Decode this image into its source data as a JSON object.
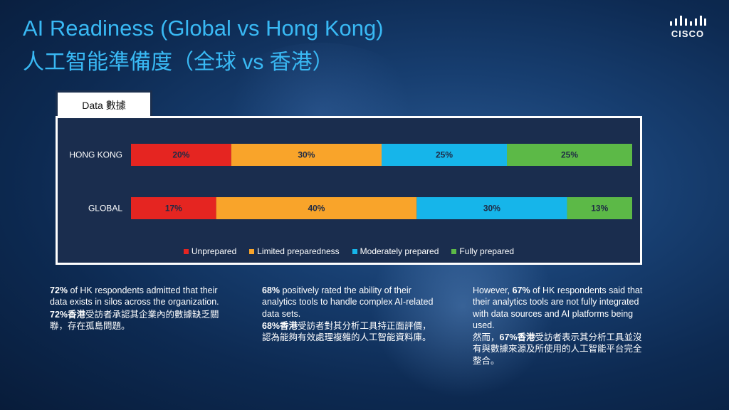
{
  "title_en": "AI Readiness (Global vs Hong Kong)",
  "title_zh": "人工智能準備度（全球 vs 香港）",
  "logo_text": "CISCO",
  "tab_label": "Data 數據",
  "colors": {
    "unprepared": "#e52521",
    "limited": "#f9a42a",
    "moderate": "#16b5ea",
    "fully": "#5cb947",
    "title": "#39b9f4"
  },
  "chart_data": {
    "type": "bar",
    "orientation": "horizontal",
    "stacked": "percent",
    "categories": [
      "HONG KONG",
      "GLOBAL"
    ],
    "series": [
      {
        "name": "Unprepared",
        "values": [
          20,
          17
        ],
        "color": "#e52521"
      },
      {
        "name": "Limited preparedness",
        "values": [
          30,
          40
        ],
        "color": "#f9a42a"
      },
      {
        "name": "Moderately prepared",
        "values": [
          25,
          30
        ],
        "color": "#16b5ea"
      },
      {
        "name": "Fully prepared",
        "values": [
          25,
          13
        ],
        "color": "#5cb947"
      }
    ],
    "xlim": [
      0,
      100
    ],
    "legend": "bottom",
    "grid": false
  },
  "notes": [
    {
      "bold_en": "72%",
      "text_en": " of HK respondents admitted that their data exists in silos across the organization.",
      "bold_zh": "72%香港",
      "text_zh": "受訪者承認其企業內的數據缺乏關聯，存在孤島問題。"
    },
    {
      "bold_en": "68%",
      "text_en": " positively rated the ability of their analytics tools to handle complex AI-related data sets.",
      "bold_zh": "68%香港",
      "text_zh": "受訪者對其分析工具持正面評價，認為能夠有效處理複雜的人工智能資料庫。"
    },
    {
      "pre_en": "However, ",
      "bold_en": "67%",
      "text_en": " of HK respondents said that their analytics tools are not fully integrated with data sources and AI platforms being used.",
      "pre_zh": "然而，",
      "bold_zh": "67%香港",
      "text_zh": "受訪者表示其分析工具並沒有與數據來源及所使用的人工智能平台完全整合。"
    }
  ]
}
